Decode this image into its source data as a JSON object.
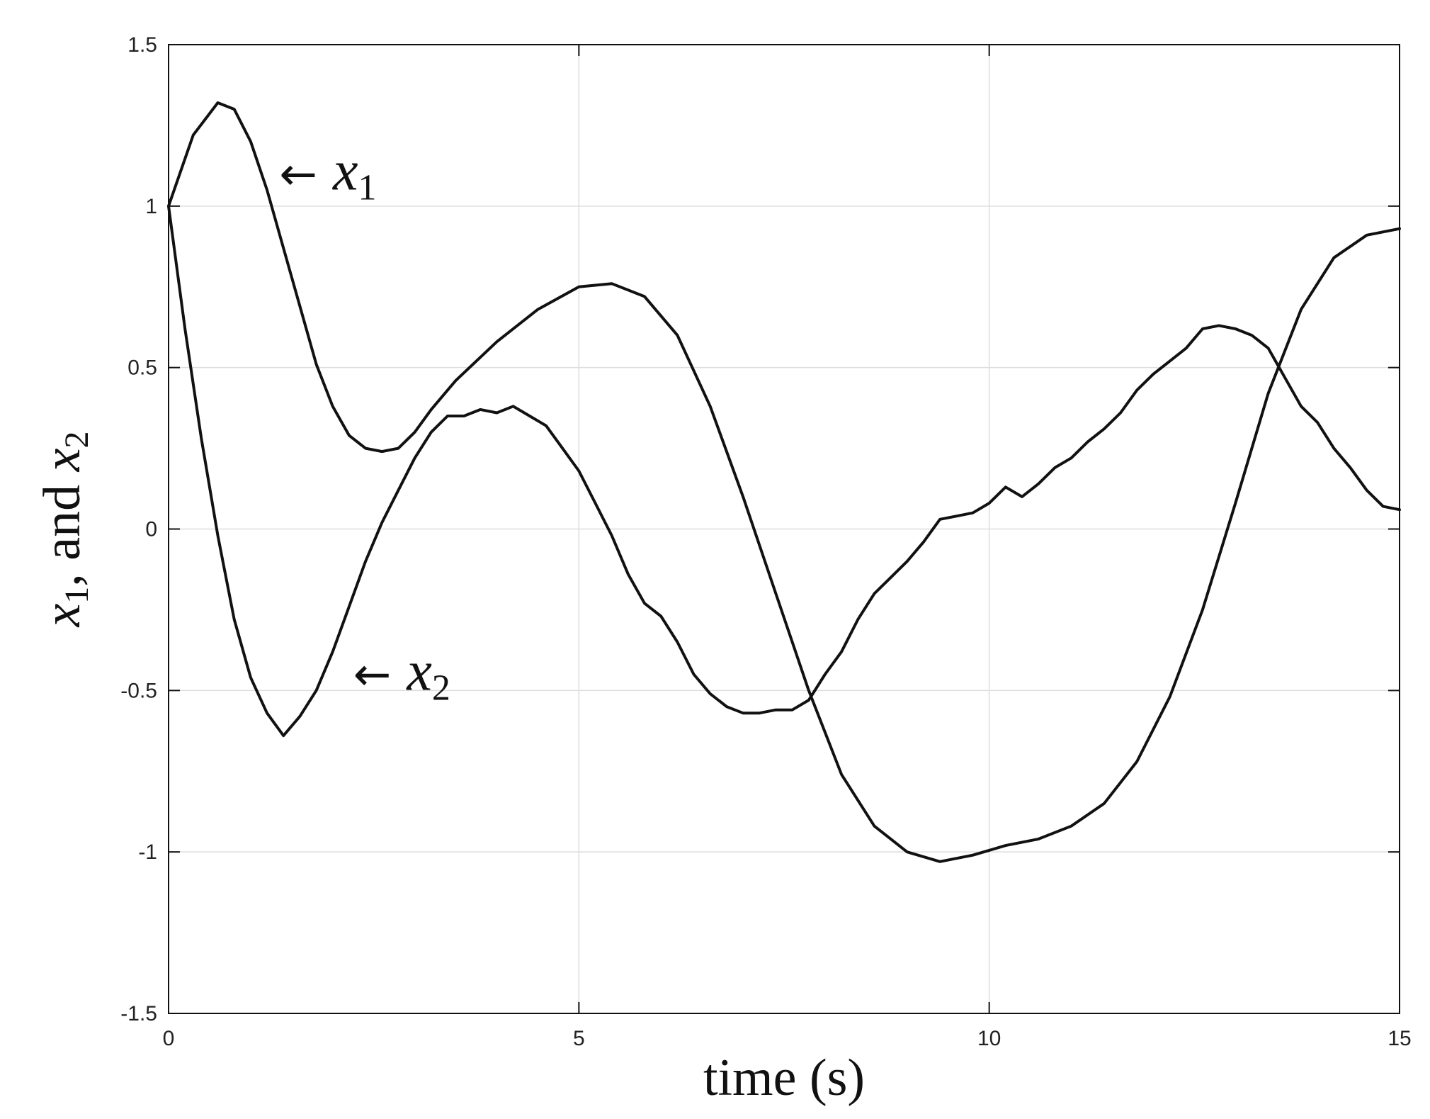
{
  "chart_data": {
    "type": "line",
    "title": "",
    "xlabel": "time (s)",
    "ylabel": {
      "v1": "x",
      "s1": "1",
      "sep": ", and ",
      "v2": "x",
      "s2": "2"
    },
    "xlim": [
      0,
      15
    ],
    "ylim": [
      -1.5,
      1.5
    ],
    "xticks": [
      0,
      5,
      10,
      15
    ],
    "xtick_labels": [
      "0",
      "5",
      "10",
      "15"
    ],
    "yticks": [
      -1.5,
      -1,
      -0.5,
      0,
      0.5,
      1,
      1.5
    ],
    "ytick_labels": [
      "-1.5",
      "-1",
      "-0.5",
      "0",
      "0.5",
      "1",
      "1.5"
    ],
    "grid": true,
    "line_color": "#111111",
    "grid_color": "#dddddd",
    "annotations": [
      {
        "arrow": "←",
        "var": "x",
        "sub": "1",
        "x": 1.35,
        "y": 1.1,
        "series": "x1"
      },
      {
        "arrow": "←",
        "var": "x",
        "sub": "2",
        "x": 2.25,
        "y": -0.45,
        "series": "x2"
      }
    ],
    "series": [
      {
        "key": "x1",
        "x": [
          0,
          0.3,
          0.6,
          0.8,
          1.0,
          1.2,
          1.4,
          1.6,
          1.8,
          2.0,
          2.2,
          2.4,
          2.6,
          2.8,
          3.0,
          3.2,
          3.5,
          4.0,
          4.5,
          5.0,
          5.4,
          5.8,
          6.2,
          6.6,
          7.0,
          7.4,
          7.8,
          8.2,
          8.6,
          9.0,
          9.4,
          9.8,
          10.2,
          10.6,
          11.0,
          11.4,
          11.8,
          12.2,
          12.6,
          13.0,
          13.4,
          13.8,
          14.2,
          14.6,
          15.0
        ],
        "y": [
          1.0,
          1.22,
          1.32,
          1.3,
          1.2,
          1.05,
          0.87,
          0.69,
          0.51,
          0.38,
          0.29,
          0.25,
          0.24,
          0.25,
          0.3,
          0.37,
          0.46,
          0.58,
          0.68,
          0.75,
          0.76,
          0.72,
          0.6,
          0.38,
          0.1,
          -0.2,
          -0.5,
          -0.76,
          -0.92,
          -1.0,
          -1.03,
          -1.01,
          -0.98,
          -0.96,
          -0.92,
          -0.85,
          -0.72,
          -0.52,
          -0.25,
          0.08,
          0.42,
          0.68,
          0.84,
          0.91,
          0.93
        ]
      },
      {
        "key": "x2",
        "x": [
          0,
          0.2,
          0.4,
          0.6,
          0.8,
          1.0,
          1.2,
          1.4,
          1.6,
          1.8,
          2.0,
          2.2,
          2.4,
          2.6,
          2.8,
          3.0,
          3.2,
          3.4,
          3.6,
          3.8,
          4.0,
          4.2,
          4.4,
          4.6,
          4.8,
          5.0,
          5.2,
          5.4,
          5.6,
          5.8,
          6.0,
          6.2,
          6.4,
          6.6,
          6.8,
          7.0,
          7.2,
          7.4,
          7.6,
          7.8,
          8.0,
          8.2,
          8.4,
          8.6,
          8.8,
          9.0,
          9.2,
          9.4,
          9.6,
          9.8,
          10.0,
          10.2,
          10.4,
          10.6,
          10.8,
          11.0,
          11.2,
          11.4,
          11.6,
          11.8,
          12.0,
          12.2,
          12.4,
          12.6,
          12.8,
          13.0,
          13.2,
          13.4,
          13.6,
          13.8,
          14.0,
          14.2,
          14.4,
          14.6,
          14.8,
          15.0
        ],
        "y": [
          1.0,
          0.62,
          0.28,
          -0.02,
          -0.28,
          -0.46,
          -0.57,
          -0.64,
          -0.58,
          -0.5,
          -0.38,
          -0.24,
          -0.1,
          0.02,
          0.12,
          0.22,
          0.3,
          0.35,
          0.35,
          0.37,
          0.36,
          0.38,
          0.35,
          0.32,
          0.25,
          0.18,
          0.08,
          -0.02,
          -0.14,
          -0.23,
          -0.27,
          -0.35,
          -0.45,
          -0.51,
          -0.55,
          -0.57,
          -0.57,
          -0.56,
          -0.56,
          -0.53,
          -0.45,
          -0.38,
          -0.28,
          -0.2,
          -0.15,
          -0.1,
          -0.04,
          0.03,
          0.04,
          0.05,
          0.08,
          0.13,
          0.1,
          0.14,
          0.19,
          0.22,
          0.27,
          0.31,
          0.36,
          0.43,
          0.48,
          0.52,
          0.56,
          0.62,
          0.63,
          0.62,
          0.6,
          0.56,
          0.47,
          0.38,
          0.33,
          0.25,
          0.19,
          0.12,
          0.07,
          0.06
        ]
      }
    ]
  }
}
